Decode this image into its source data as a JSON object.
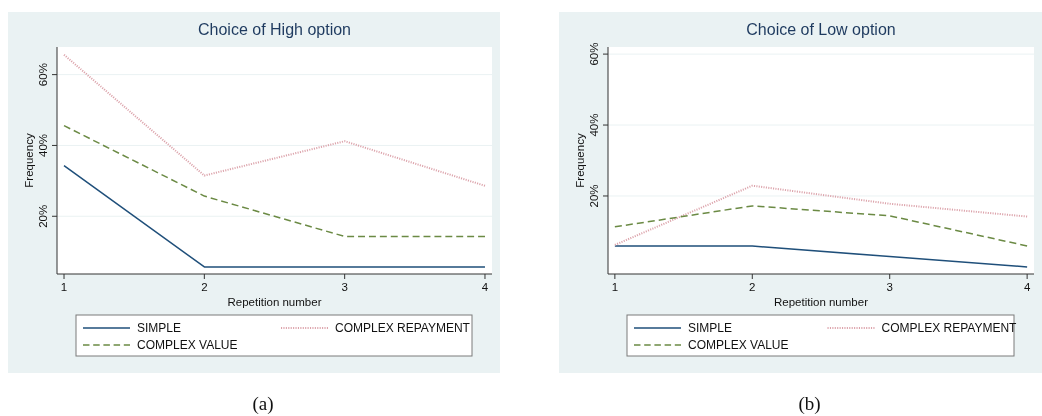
{
  "chart_data": [
    {
      "type": "line",
      "title": "Choice of High option",
      "xlabel": "Repetition number",
      "ylabel": "Frequency",
      "x": [
        1,
        2,
        3,
        4
      ],
      "xlim": [
        0.95,
        4.05
      ],
      "xticks": [
        1,
        2,
        3,
        4
      ],
      "ylim": [
        3.7,
        67.8
      ],
      "yticks": [
        {
          "value": 20,
          "label": "20%"
        },
        {
          "value": 40,
          "label": "40%"
        },
        {
          "value": 60,
          "label": "60%"
        }
      ],
      "grid": "y",
      "legend": "bottom",
      "series": [
        {
          "name": "SIMPLE",
          "color": "#1f4f7a",
          "line_style": "solid",
          "values": [
            34.3,
            5.7,
            5.7,
            5.7
          ]
        },
        {
          "name": "COMPLEX REPAYMENT",
          "color": "#dca3ab",
          "line_style": "dotted",
          "values": [
            65.6,
            31.5,
            41.2,
            28.6
          ]
        },
        {
          "name": "COMPLEX VALUE",
          "color": "#6b8a44",
          "line_style": "dashed",
          "values": [
            45.6,
            25.7,
            14.3,
            14.3
          ]
        }
      ],
      "annotations": [
        "(a)"
      ]
    },
    {
      "type": "line",
      "title": "Choice of Low option",
      "xlabel": "Repetition number",
      "ylabel": "Frequency",
      "x": [
        1,
        2,
        3,
        4
      ],
      "xlim": [
        0.95,
        4.05
      ],
      "xticks": [
        1,
        2,
        3,
        4
      ],
      "ylim": [
        -2,
        62
      ],
      "yticks": [
        {
          "value": 20,
          "label": "20%"
        },
        {
          "value": 40,
          "label": "40%"
        },
        {
          "value": 60,
          "label": "60%"
        }
      ],
      "grid": "y",
      "legend": "bottom",
      "series": [
        {
          "name": "SIMPLE",
          "color": "#1f4f7a",
          "line_style": "solid",
          "values": [
            5.9,
            5.9,
            2.9,
            0
          ]
        },
        {
          "name": "COMPLEX REPAYMENT",
          "color": "#dca3ab",
          "line_style": "dotted",
          "values": [
            6.2,
            22.9,
            17.8,
            14.2
          ]
        },
        {
          "name": "COMPLEX VALUE",
          "color": "#6b8a44",
          "line_style": "dashed",
          "values": [
            11.3,
            17.2,
            14.4,
            5.9
          ]
        }
      ],
      "annotations": [
        "(b)"
      ]
    }
  ]
}
